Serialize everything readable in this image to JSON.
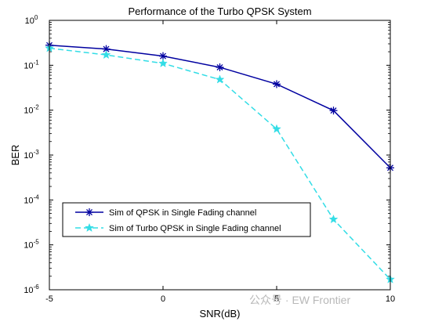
{
  "watermark": "公众号 · EW Frontier",
  "chart_data": {
    "type": "line",
    "title": "Performance of the Turbo QPSK System",
    "xlabel": "SNR(dB)",
    "ylabel": "BER",
    "xlim": [
      -5,
      10
    ],
    "ylim": [
      1e-06,
      1
    ],
    "yscale": "log",
    "grid": false,
    "legend_position": "lower-left",
    "x_ticks": [
      "-5",
      "0",
      "5",
      "10"
    ],
    "x_tick_values": [
      -5,
      0,
      5,
      10
    ],
    "y_tick_exponents": [
      "0",
      "-1",
      "-2",
      "-3",
      "-4",
      "-5",
      "-6"
    ],
    "y_tick_base": "10",
    "x": [
      -5,
      -2.5,
      0,
      2.5,
      5,
      7.5,
      10
    ],
    "series": [
      {
        "name": "Sim of QPSK in Single Fading channel",
        "color": "#0000a0",
        "linestyle": "solid",
        "marker": "asterisk",
        "values": [
          0.28,
          0.23,
          0.16,
          0.09,
          0.038,
          0.0098,
          0.00052
        ]
      },
      {
        "name": "Sim of Turbo QPSK in Single Fading channel",
        "color": "#33dde6",
        "linestyle": "dashed",
        "marker": "pentagram",
        "values": [
          0.24,
          0.17,
          0.11,
          0.048,
          0.0038,
          3.7e-05,
          1.7e-06
        ]
      }
    ]
  }
}
